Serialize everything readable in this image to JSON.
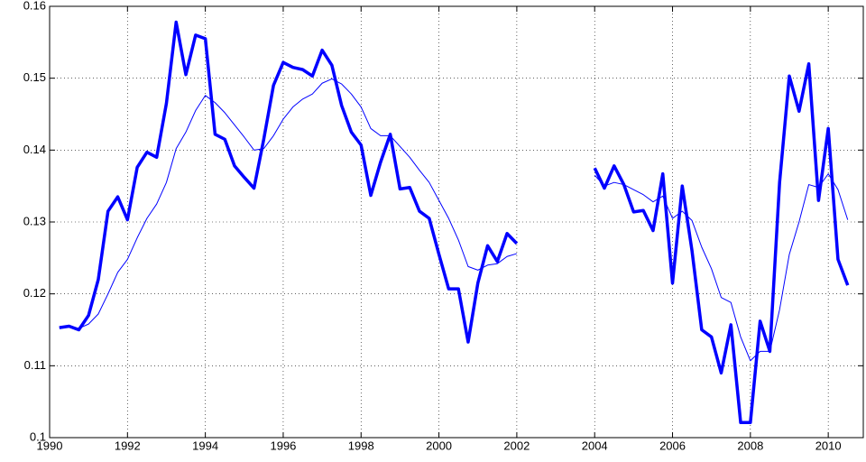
{
  "chart_data": {
    "type": "line",
    "x": [
      1990.25,
      1990.5,
      1990.75,
      1991,
      1991.25,
      1991.5,
      1991.75,
      1992,
      1992.25,
      1992.5,
      1992.75,
      1993,
      1993.25,
      1993.5,
      1993.75,
      1994,
      1994.25,
      1994.5,
      1994.75,
      1995,
      1995.25,
      1995.5,
      1995.75,
      1996,
      1996.25,
      1996.5,
      1996.75,
      1997,
      1997.25,
      1997.5,
      1997.75,
      1998,
      1998.25,
      1998.5,
      1998.75,
      1999,
      1999.25,
      1999.5,
      1999.75,
      2000,
      2000.25,
      2000.5,
      2000.75,
      2001,
      2001.25,
      2001.5,
      2001.75,
      2002,
      2002.25,
      2002.5,
      2002.75,
      2003,
      2003.25,
      2003.5,
      2003.75,
      2004,
      2004.25,
      2004.5,
      2004.75,
      2005,
      2005.25,
      2005.5,
      2005.75,
      2006,
      2006.25,
      2006.5,
      2006.75,
      2007,
      2007.25,
      2007.5,
      2007.75,
      2008,
      2008.25,
      2008.5,
      2008.75,
      2009,
      2009.25,
      2009.5,
      2009.75,
      2010,
      2010.25,
      2010.5
    ],
    "series": [
      {
        "color": "#0000ff",
        "line_width": 3.5,
        "values": [
          0.1153,
          0.1155,
          0.115,
          0.117,
          0.122,
          0.1315,
          0.1335,
          0.1303,
          0.1376,
          0.1397,
          0.139,
          0.1465,
          0.1578,
          0.1505,
          0.156,
          0.1555,
          0.1422,
          0.1415,
          0.1378,
          0.1362,
          0.1347,
          0.1415,
          0.149,
          0.1522,
          0.1515,
          0.1512,
          0.1503,
          0.1539,
          0.1518,
          0.1462,
          0.1425,
          0.1407,
          0.1337,
          0.1383,
          0.1422,
          0.1346,
          0.1348,
          0.1315,
          0.1305,
          0.1255,
          0.1207,
          0.1207,
          0.1133,
          0.1215,
          0.1267,
          0.1245,
          0.1284,
          0.127,
          null,
          null,
          null,
          null,
          null,
          null,
          null,
          0.1375,
          0.1347,
          0.1378,
          0.1352,
          0.1314,
          0.1316,
          0.1288,
          0.1367,
          0.1215,
          0.135,
          0.126,
          0.115,
          0.114,
          0.109,
          0.1157,
          0.1021,
          0.1021,
          0.1162,
          0.112,
          0.1355,
          0.1503,
          0.1454,
          0.152,
          0.133,
          0.143,
          0.1248,
          0.1212
        ]
      },
      {
        "color": "#0000ff",
        "line_width": 1,
        "values": [
          0.1153,
          0.1155,
          0.1152,
          0.1158,
          0.1172,
          0.12,
          0.123,
          0.1248,
          0.1278,
          0.1305,
          0.1325,
          0.1355,
          0.1402,
          0.1425,
          0.1455,
          0.1476,
          0.1466,
          0.1452,
          0.1435,
          0.1418,
          0.14,
          0.1402,
          0.142,
          0.1443,
          0.146,
          0.1471,
          0.1478,
          0.1493,
          0.1499,
          0.1492,
          0.1478,
          0.146,
          0.143,
          0.142,
          0.142,
          0.1405,
          0.139,
          0.1372,
          0.1355,
          0.133,
          0.1305,
          0.1275,
          0.1238,
          0.1233,
          0.124,
          0.1242,
          0.1252,
          0.1256,
          null,
          null,
          null,
          null,
          null,
          null,
          null,
          0.1365,
          0.135,
          0.1355,
          0.1352,
          0.1345,
          0.1338,
          0.1328,
          0.1336,
          0.1305,
          0.1315,
          0.1302,
          0.1265,
          0.1235,
          0.1195,
          0.1188,
          0.114,
          0.1107,
          0.112,
          0.112,
          0.1178,
          0.1255,
          0.13,
          0.1352,
          0.1348,
          0.1367,
          0.1345,
          0.1303
        ]
      }
    ],
    "xlim": [
      1990,
      2010.9
    ],
    "xticks": [
      1990,
      1992,
      1994,
      1996,
      1998,
      2000,
      2002,
      2004,
      2006,
      2008,
      2010
    ],
    "ylim": [
      0.1,
      0.16
    ],
    "yticks": [
      0.1,
      0.11,
      0.12,
      0.13,
      0.14,
      0.15,
      0.16
    ],
    "grid": true
  }
}
